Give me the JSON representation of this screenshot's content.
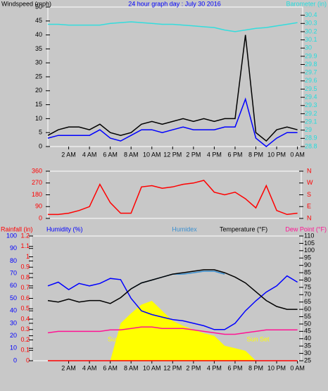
{
  "chart_data": [
    {
      "type": "line",
      "title": "24 hour graph day : July 30 2016",
      "xlim": [
        0,
        24.5
      ],
      "xticks": [
        {
          "value": 2,
          "label": "2 AM"
        },
        {
          "value": 4,
          "label": "4 AM"
        },
        {
          "value": 6,
          "label": "6 AM"
        },
        {
          "value": 8,
          "label": "8 AM"
        },
        {
          "value": 10,
          "label": "10 AM"
        },
        {
          "value": 12,
          "label": "12 PM"
        },
        {
          "value": 14,
          "label": "2 PM"
        },
        {
          "value": 16,
          "label": "4 PM"
        },
        {
          "value": 18,
          "label": "6 PM"
        },
        {
          "value": 20,
          "label": "8 PM"
        },
        {
          "value": 22,
          "label": "10 PM"
        },
        {
          "value": 24,
          "label": "0 AM"
        }
      ],
      "ylim": [
        0,
        50
      ],
      "yticks": [
        0,
        5,
        10,
        15,
        20,
        25,
        30,
        35,
        40,
        45,
        50
      ],
      "y2lim": [
        28.8,
        30.5
      ],
      "y2ticks": [
        28.8,
        28.9,
        29,
        29.1,
        29.2,
        29.3,
        29.4,
        29.5,
        29.6,
        29.7,
        29.8,
        29.9,
        30,
        30.1,
        30.2,
        30.3,
        30.4
      ],
      "x": [
        0,
        1,
        2,
        3,
        4,
        5,
        6,
        7,
        8,
        9,
        10,
        11,
        12,
        13,
        14,
        15,
        16,
        17,
        18,
        19,
        20,
        21,
        22,
        23,
        24
      ],
      "series": [
        {
          "name": "Windspeed (mph)",
          "color": "#000000",
          "values": [
            4,
            6,
            7,
            7,
            6,
            8,
            5,
            4,
            5,
            8,
            9,
            8,
            9,
            10,
            9,
            10,
            9,
            10,
            10,
            40,
            5,
            2,
            6,
            7,
            6
          ]
        },
        {
          "color": "#0000ff",
          "values": [
            3,
            4,
            4,
            4,
            4,
            6,
            3,
            2,
            4,
            6,
            6,
            5,
            6,
            7,
            6,
            6,
            6,
            7,
            7,
            17,
            3,
            0,
            3,
            5,
            5
          ]
        },
        {
          "name": "Barometer (in)",
          "color": "#33dddd",
          "axis": "y2",
          "values": [
            30.29,
            30.29,
            30.28,
            30.28,
            30.28,
            30.28,
            30.3,
            30.31,
            30.32,
            30.31,
            30.3,
            30.29,
            30.29,
            30.28,
            30.27,
            30.26,
            30.25,
            30.22,
            30.2,
            30.22,
            30.24,
            30.25,
            30.27,
            30.29,
            30.31
          ]
        }
      ]
    },
    {
      "type": "line",
      "xlim": [
        0,
        24.5
      ],
      "ylim": [
        0,
        360
      ],
      "yticks": [
        0,
        90,
        180,
        270,
        360
      ],
      "y2lim": [
        0,
        360
      ],
      "y2ticks": [
        {
          "value": 0,
          "label": "N"
        },
        {
          "value": 90,
          "label": "E"
        },
        {
          "value": 180,
          "label": "S"
        },
        {
          "value": 270,
          "label": "W"
        },
        {
          "value": 360,
          "label": "N"
        }
      ],
      "x": [
        0,
        1,
        2,
        3,
        4,
        5,
        6,
        7,
        8,
        9,
        10,
        11,
        12,
        13,
        14,
        15,
        16,
        17,
        18,
        19,
        20,
        21,
        22,
        23,
        24
      ],
      "series": [
        {
          "color": "#ff0000",
          "values": [
            30,
            30,
            40,
            60,
            90,
            260,
            120,
            40,
            40,
            240,
            250,
            230,
            240,
            260,
            270,
            290,
            200,
            180,
            200,
            150,
            80,
            250,
            60,
            30,
            40
          ]
        }
      ]
    },
    {
      "type": "line",
      "xlim": [
        0,
        24.5
      ],
      "xticks": [
        {
          "value": 2,
          "label": "2 AM"
        },
        {
          "value": 4,
          "label": "4 AM"
        },
        {
          "value": 6,
          "label": "6 AM"
        },
        {
          "value": 8,
          "label": "8 AM"
        },
        {
          "value": 10,
          "label": "10 AM"
        },
        {
          "value": 12,
          "label": "12 PM"
        },
        {
          "value": 14,
          "label": "2 PM"
        },
        {
          "value": 16,
          "label": "4 PM"
        },
        {
          "value": 18,
          "label": "6 PM"
        },
        {
          "value": 20,
          "label": "8 PM"
        },
        {
          "value": 22,
          "label": "10 PM"
        },
        {
          "value": 24,
          "label": "0 AM"
        }
      ],
      "ylim": [
        0,
        100
      ],
      "yticks": [
        0,
        10,
        20,
        30,
        40,
        50,
        60,
        70,
        80,
        90,
        100
      ],
      "y3lim": [
        0,
        1.2
      ],
      "y3ticks": [
        0,
        0.1,
        0.2,
        0.3,
        0.4,
        0.5,
        0.6,
        0.7,
        0.8,
        0.9,
        1,
        1.1,
        1.2
      ],
      "y2lim": [
        25,
        110
      ],
      "y2ticks": [
        25,
        30,
        35,
        40,
        45,
        50,
        55,
        60,
        65,
        70,
        75,
        80,
        85,
        90,
        95,
        100,
        105,
        110
      ],
      "x": [
        0,
        1,
        2,
        3,
        4,
        5,
        6,
        7,
        8,
        9,
        10,
        11,
        12,
        13,
        14,
        15,
        16,
        17,
        18,
        19,
        20,
        21,
        22,
        23,
        24
      ],
      "annotations": [
        {
          "text": "Sun",
          "x": 6.3
        },
        {
          "text": "Sun Set",
          "x": 20.2
        }
      ],
      "series": [
        {
          "color": "#ffff00",
          "area": true,
          "values": [
            0,
            0,
            0,
            0,
            0,
            0,
            0,
            30,
            38,
            45,
            48,
            40,
            32,
            28,
            25,
            22,
            20,
            12,
            10,
            8,
            0,
            0,
            0,
            0,
            0
          ]
        },
        {
          "name": "Rainfall (in)",
          "color": "#ff0000",
          "axis": "y3",
          "values": [
            0,
            0,
            0,
            0,
            0,
            0,
            0,
            0,
            0,
            0,
            0,
            0,
            0,
            0,
            0,
            0,
            0,
            0,
            0,
            0,
            0,
            0,
            0,
            0,
            0
          ]
        },
        {
          "name": "Humidity (%)",
          "color": "#0000ff",
          "values": [
            60,
            63,
            57,
            62,
            60,
            62,
            66,
            65,
            50,
            40,
            37,
            35,
            33,
            32,
            30,
            28,
            25,
            25,
            30,
            40,
            48,
            55,
            60,
            68,
            63
          ]
        },
        {
          "name": "Humidex",
          "color": "#3a8fd0",
          "axis": "y2",
          "values": [
            null,
            null,
            null,
            null,
            null,
            null,
            null,
            null,
            74,
            78,
            80,
            82,
            84,
            84,
            85,
            86,
            86,
            84,
            null,
            null,
            null,
            null,
            null,
            null,
            null
          ]
        },
        {
          "name": "Temperature (°F)",
          "color": "#000000",
          "axis": "y2",
          "values": [
            66,
            65,
            67,
            65,
            66,
            66,
            64,
            68,
            74,
            78,
            80,
            82,
            84,
            85,
            86,
            87,
            87,
            85,
            82,
            78,
            72,
            66,
            62,
            60,
            60
          ]
        },
        {
          "name": "Dew Point (°F)",
          "color": "#ff1493",
          "axis": "y2",
          "values": [
            44,
            45,
            45,
            45,
            45,
            45,
            46,
            46,
            47,
            48,
            48,
            47,
            47,
            47,
            46,
            45,
            44,
            43,
            43,
            44,
            45,
            46,
            46,
            46,
            46
          ]
        }
      ]
    }
  ]
}
